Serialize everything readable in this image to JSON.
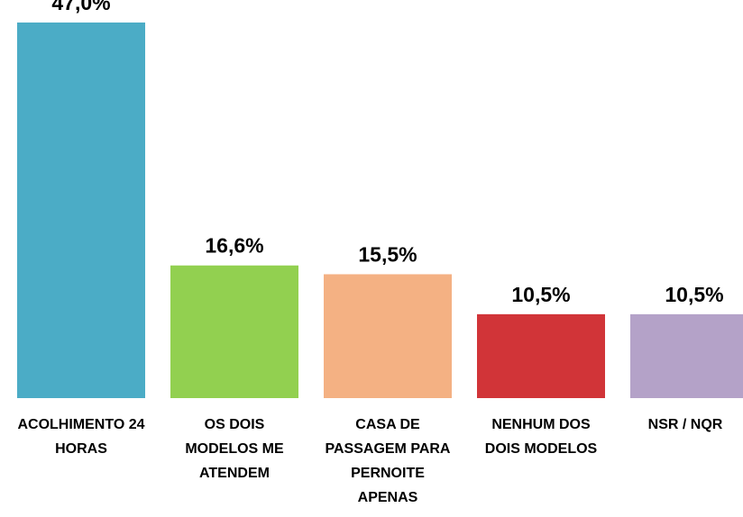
{
  "chart_data": {
    "type": "bar",
    "categories": [
      "ACOLHIMENTO 24 HORAS",
      "OS DOIS MODELOS ME ATENDEM",
      "CASA DE PASSAGEM PARA PERNOITE APENAS",
      "NENHUM DOS DOIS MODELOS",
      "NSR / NQR"
    ],
    "values": [
      47.0,
      16.6,
      15.5,
      10.5,
      10.5
    ],
    "value_labels": [
      "47,0%",
      "16,6%",
      "15,5%",
      "10,5%",
      "10,5%"
    ],
    "colors": [
      "#4bacc6",
      "#92d050",
      "#f4b183",
      "#d13438",
      "#b4a2c8"
    ]
  }
}
